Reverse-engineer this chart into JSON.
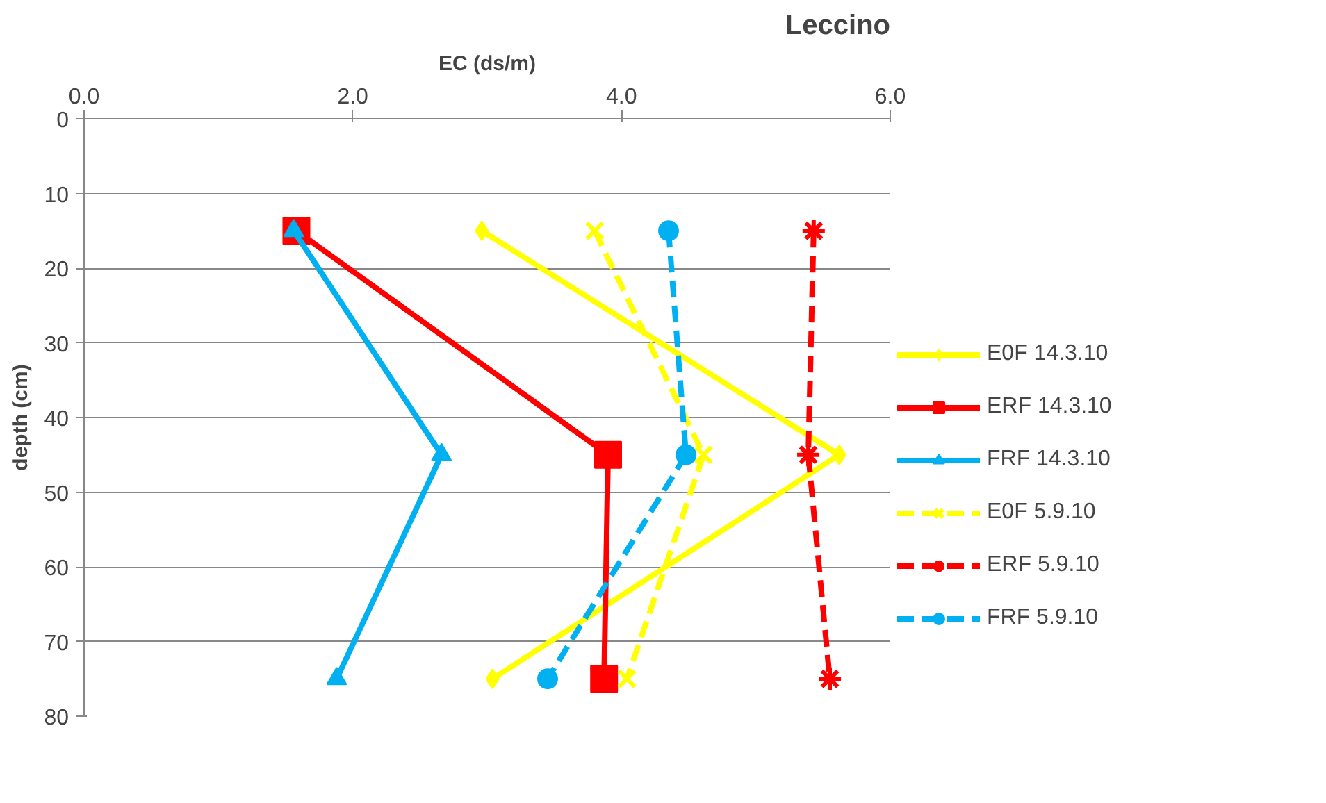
{
  "chart_data": {
    "type": "line",
    "title": "Leccino",
    "xlabel": "EC (ds/m)",
    "ylabel": "depth (cm)",
    "xlim": [
      0,
      6
    ],
    "xticks": [
      {
        "value": 0,
        "label": "0.0"
      },
      {
        "value": 2,
        "label": "2.0"
      },
      {
        "value": 4,
        "label": "4.0"
      },
      {
        "value": 6,
        "label": "6.0"
      }
    ],
    "ylim": [
      80,
      0
    ],
    "yticks": [
      0,
      10,
      20,
      30,
      40,
      50,
      60,
      70,
      80
    ],
    "grid": "y",
    "legend": "right",
    "series": [
      {
        "name": "E0F 14.3.10",
        "color": "#ffff00",
        "marker": "diamond",
        "line_style": "solid",
        "x": [
          2.96,
          5.62,
          3.04
        ],
        "values": [
          15,
          45,
          75
        ]
      },
      {
        "name": "ERF 14.3.10",
        "color": "#ff0000",
        "marker": "square",
        "line_style": "solid",
        "x": [
          1.58,
          3.9,
          3.87
        ],
        "values": [
          15,
          45,
          75
        ]
      },
      {
        "name": "FRF 14.3.10",
        "color": "#00b0f0",
        "marker": "triangle",
        "line_style": "solid",
        "x": [
          1.56,
          2.66,
          1.88
        ],
        "values": [
          15,
          45,
          75
        ]
      },
      {
        "name": "E0F 5.9.10",
        "color": "#ffff00",
        "marker": "x",
        "line_style": "dashed",
        "x": [
          3.8,
          4.61,
          4.04
        ],
        "values": [
          15,
          45,
          75
        ]
      },
      {
        "name": "ERF 5.9.10",
        "color": "#ff0000",
        "marker": "cross",
        "line_style": "dashed",
        "x": [
          5.43,
          5.39,
          5.55
        ],
        "values": [
          15,
          45,
          75
        ]
      },
      {
        "name": "FRF 5.9.10",
        "color": "#00b0f0",
        "marker": "circle",
        "line_style": "dashed",
        "x": [
          4.35,
          4.48,
          3.45
        ],
        "values": [
          15,
          45,
          75
        ]
      }
    ]
  }
}
